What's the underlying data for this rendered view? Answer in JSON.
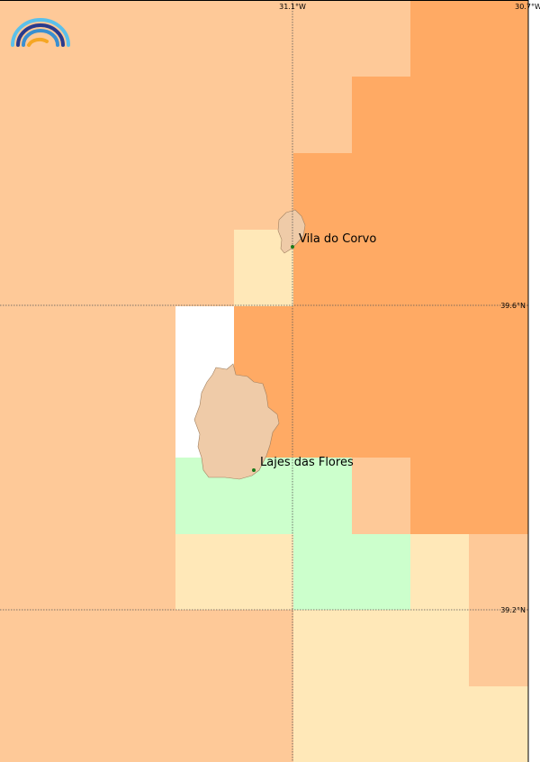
{
  "map": {
    "lon_labels": [
      "31.1°W",
      "30.7°W"
    ],
    "lat_labels": [
      "39.6°N",
      "39.2°N"
    ],
    "places": [
      {
        "label": "Vila do Corvo"
      },
      {
        "label": "Lajes das Flores"
      }
    ]
  }
}
